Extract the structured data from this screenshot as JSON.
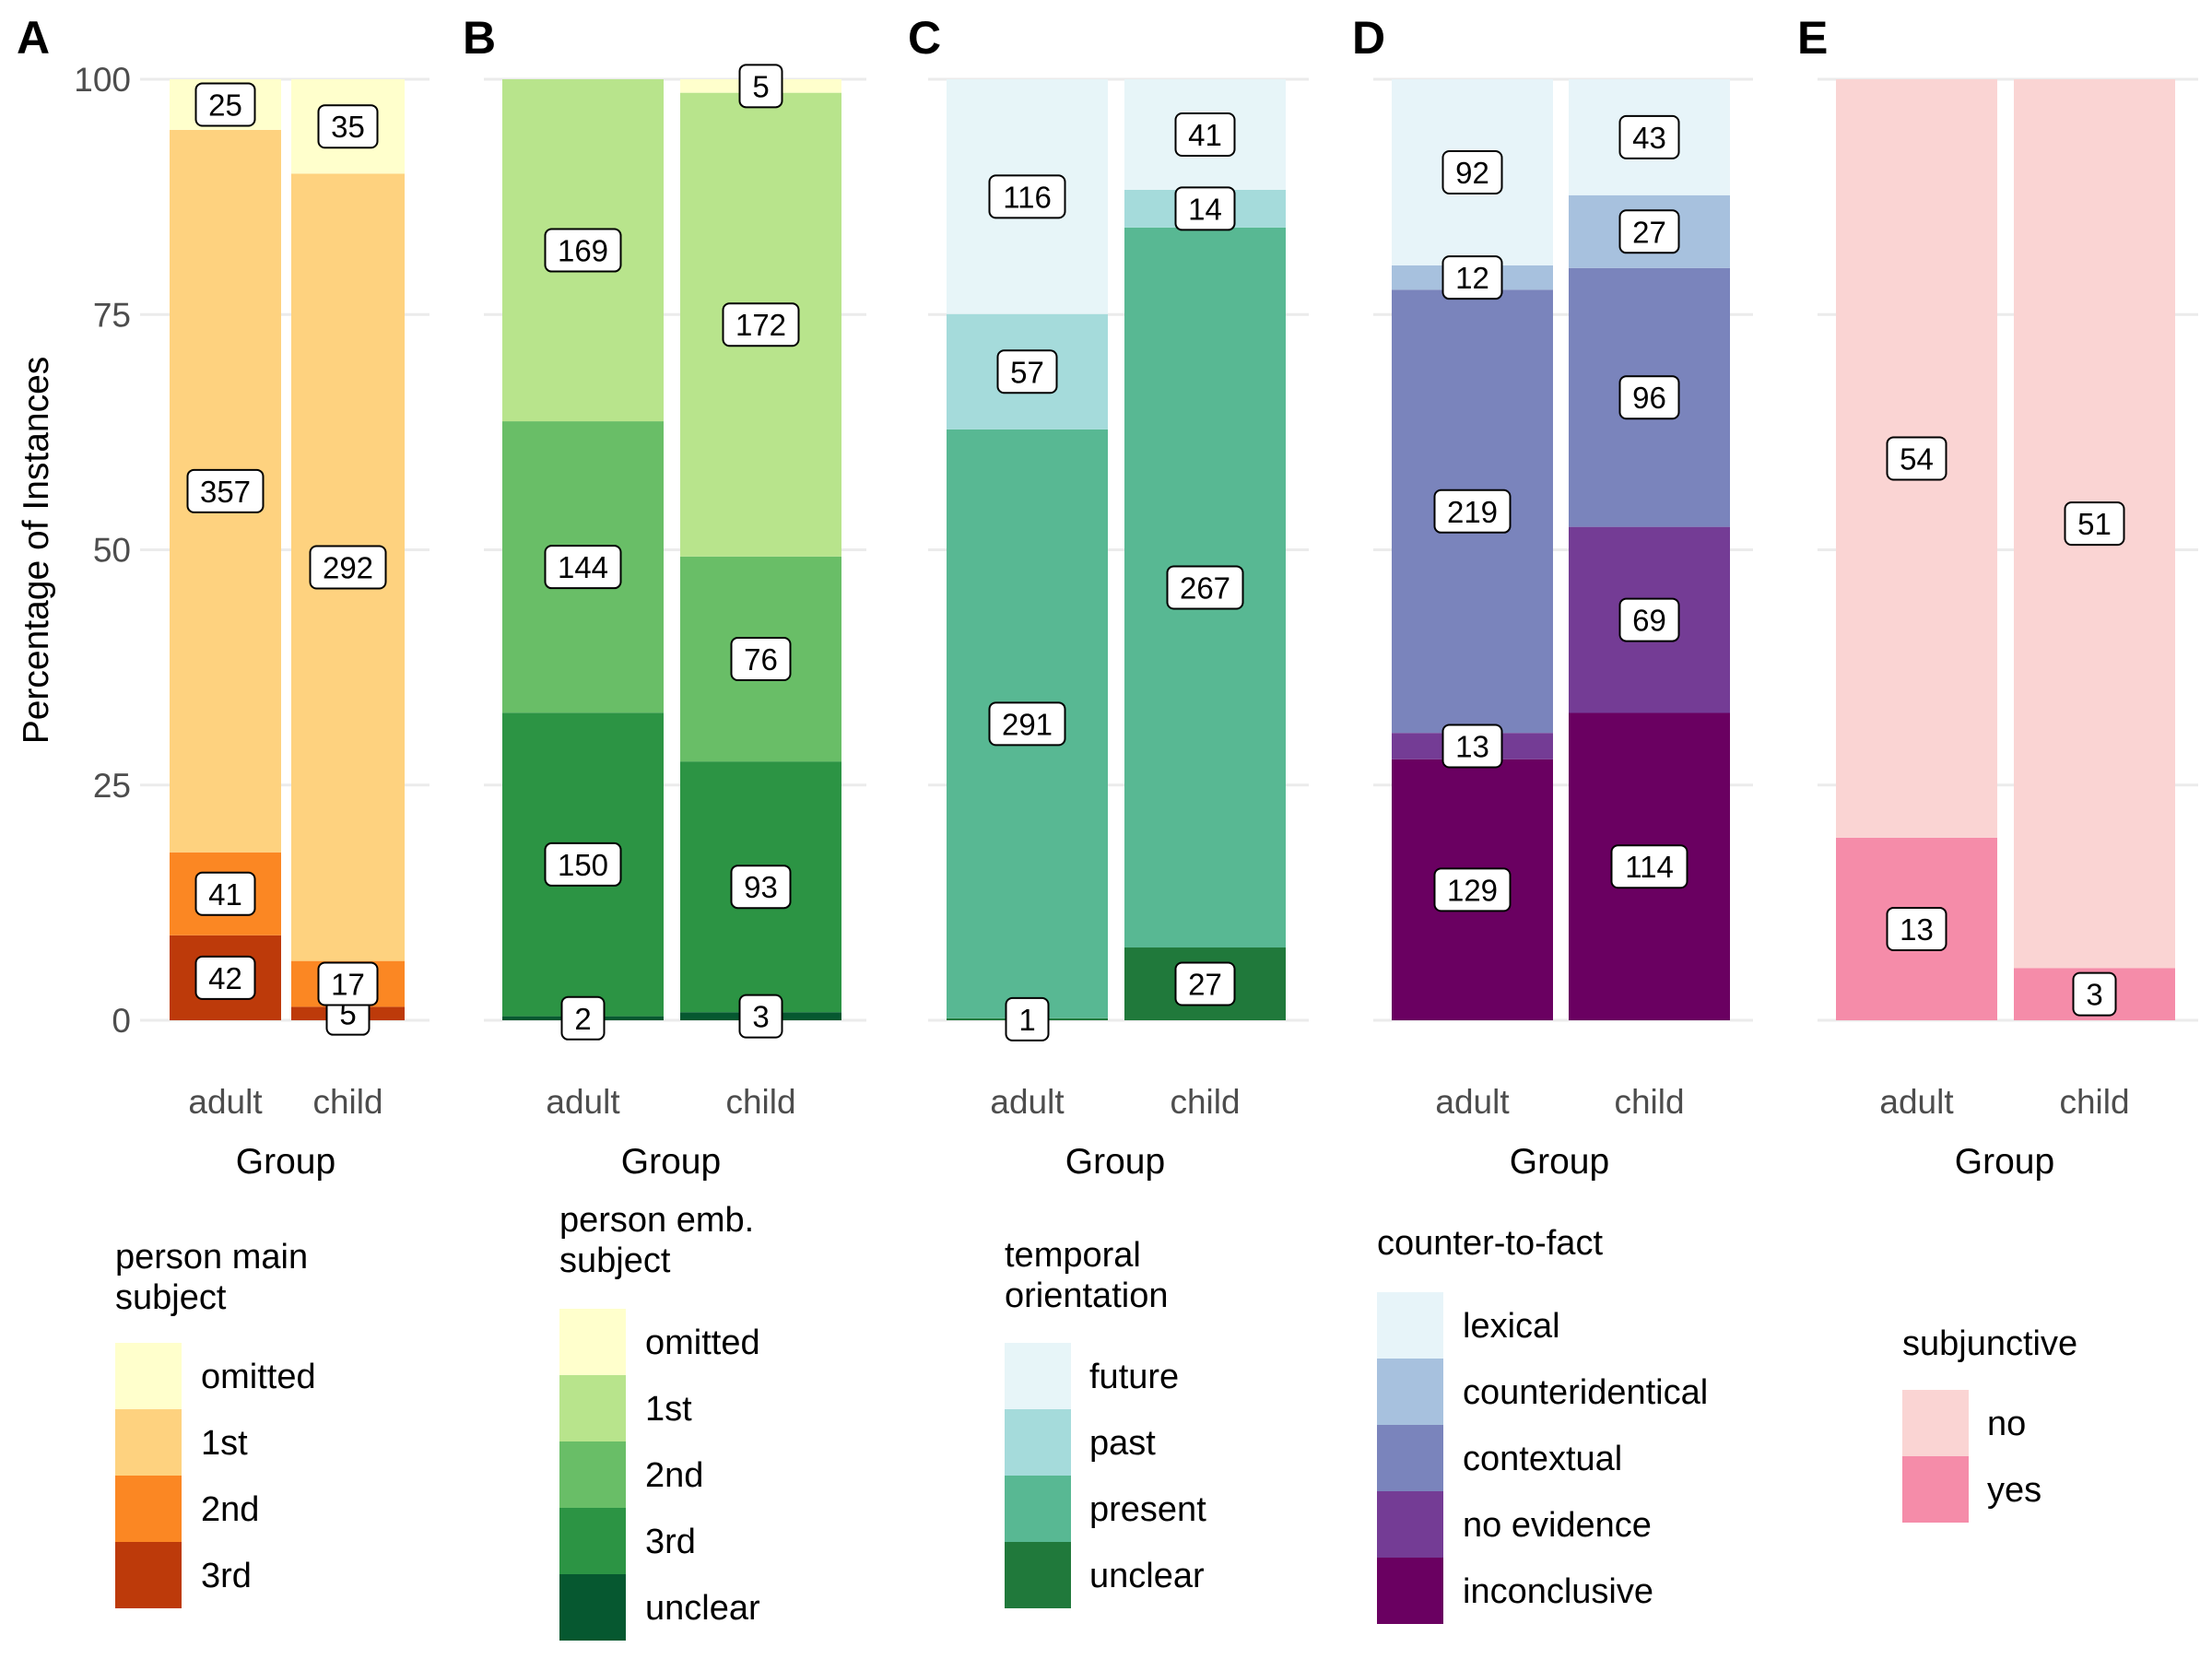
{
  "chart_data": [
    {
      "panel": "A",
      "type": "bar",
      "stacked": "percent",
      "xlabel": "Group",
      "ylabel": "Percentage of Instances",
      "ylim": [
        0,
        100
      ],
      "yticks": [
        0,
        25,
        50,
        75,
        100
      ],
      "categories": [
        "adult",
        "child"
      ],
      "legend_title": "person main subject",
      "series": [
        {
          "name": "omitted",
          "color": "#ffffcc",
          "values": [
            25,
            35
          ]
        },
        {
          "name": "1st",
          "color": "#fed27f",
          "values": [
            357,
            292
          ]
        },
        {
          "name": "2nd",
          "color": "#fb8723",
          "values": [
            41,
            17
          ]
        },
        {
          "name": "3rd",
          "color": "#bd3a0a",
          "values": [
            42,
            5
          ]
        }
      ]
    },
    {
      "panel": "B",
      "type": "bar",
      "stacked": "percent",
      "xlabel": "Group",
      "ylim": [
        0,
        100
      ],
      "categories": [
        "adult",
        "child"
      ],
      "legend_title": "person emb. subject",
      "series": [
        {
          "name": "omitted",
          "color": "#ffffcc",
          "values": [
            0,
            5
          ]
        },
        {
          "name": "1st",
          "color": "#b8e48c",
          "values": [
            169,
            172
          ]
        },
        {
          "name": "2nd",
          "color": "#69be67",
          "values": [
            144,
            76
          ]
        },
        {
          "name": "3rd",
          "color": "#2c9444",
          "values": [
            150,
            93
          ]
        },
        {
          "name": "unclear",
          "color": "#065830",
          "values": [
            2,
            3
          ]
        }
      ]
    },
    {
      "panel": "C",
      "type": "bar",
      "stacked": "percent",
      "xlabel": "Group",
      "ylim": [
        0,
        100
      ],
      "categories": [
        "adult",
        "child"
      ],
      "legend_title": "temporal orientation",
      "series": [
        {
          "name": "future",
          "color": "#e7f5f8",
          "values": [
            116,
            41
          ]
        },
        {
          "name": "past",
          "color": "#a5dbdb",
          "values": [
            57,
            14
          ]
        },
        {
          "name": "present",
          "color": "#58b893",
          "values": [
            291,
            267
          ]
        },
        {
          "name": "unclear",
          "color": "#20793b",
          "values": [
            1,
            27
          ]
        }
      ]
    },
    {
      "panel": "D",
      "type": "bar",
      "stacked": "percent",
      "xlabel": "Group",
      "ylim": [
        0,
        100
      ],
      "categories": [
        "adult",
        "child"
      ],
      "legend_title": "counter-to-fact",
      "series": [
        {
          "name": "lexical",
          "color": "#e7f4f9",
          "values": [
            92,
            43
          ]
        },
        {
          "name": "counteridentical",
          "color": "#a7c1de",
          "values": [
            12,
            27
          ]
        },
        {
          "name": "contextual",
          "color": "#7a84bc",
          "values": [
            219,
            96
          ]
        },
        {
          "name": "no evidence",
          "color": "#743c95",
          "values": [
            13,
            69
          ]
        },
        {
          "name": "inconclusive",
          "color": "#6a0061",
          "values": [
            129,
            114
          ]
        }
      ]
    },
    {
      "panel": "E",
      "type": "bar",
      "stacked": "percent",
      "xlabel": "Group",
      "ylim": [
        0,
        100
      ],
      "categories": [
        "adult",
        "child"
      ],
      "legend_title": "subjunctive",
      "series": [
        {
          "name": "no",
          "color": "#fad4d3",
          "values": [
            54,
            51
          ]
        },
        {
          "name": "yes",
          "color": "#f58ca9",
          "values": [
            13,
            3
          ]
        }
      ]
    }
  ]
}
